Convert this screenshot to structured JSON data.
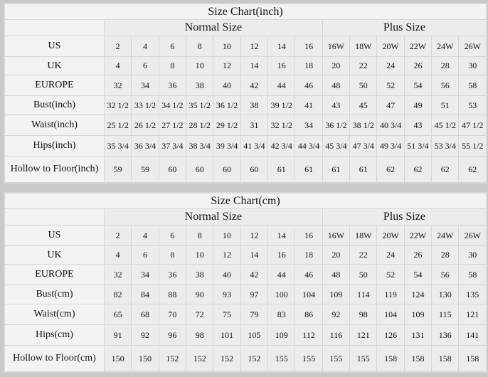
{
  "charts": [
    {
      "title": "Size Chart(inch)",
      "normal_label": "Normal Size",
      "plus_label": "Plus Size",
      "rows": [
        {
          "label": "US",
          "values": [
            "2",
            "4",
            "6",
            "8",
            "10",
            "12",
            "14",
            "16",
            "16W",
            "18W",
            "20W",
            "22W",
            "24W",
            "26W"
          ]
        },
        {
          "label": "UK",
          "values": [
            "4",
            "6",
            "8",
            "10",
            "12",
            "14",
            "16",
            "18",
            "20",
            "22",
            "24",
            "26",
            "28",
            "30"
          ]
        },
        {
          "label": "EUROPE",
          "values": [
            "32",
            "34",
            "36",
            "38",
            "40",
            "42",
            "44",
            "46",
            "48",
            "50",
            "52",
            "54",
            "56",
            "58"
          ]
        },
        {
          "label": "Bust(inch)",
          "values": [
            "32 1/2",
            "33 1/2",
            "34 1/2",
            "35 1/2",
            "36 1/2",
            "38",
            "39 1/2",
            "41",
            "43",
            "45",
            "47",
            "49",
            "51",
            "53"
          ]
        },
        {
          "label": "Waist(inch)",
          "values": [
            "25 1/2",
            "26 1/2",
            "27 1/2",
            "28 1/2",
            "29 1/2",
            "31",
            "32 1/2",
            "34",
            "36 1/2",
            "38 1/2",
            "40 3/4",
            "43",
            "45 1/2",
            "47 1/2"
          ]
        },
        {
          "label": "Hips(inch)",
          "values": [
            "35 3/4",
            "36 3/4",
            "37 3/4",
            "38 3/4",
            "39 3/4",
            "41 3/4",
            "42 3/4",
            "44 3/4",
            "45 3/4",
            "47 3/4",
            "49 3/4",
            "51 3/4",
            "53 3/4",
            "55 1/2"
          ]
        },
        {
          "label": "Hollow to Floor(inch)",
          "values": [
            "59",
            "59",
            "60",
            "60",
            "60",
            "60",
            "61",
            "61",
            "61",
            "61",
            "62",
            "62",
            "62",
            "62"
          ]
        }
      ]
    },
    {
      "title": "Size Chart(cm)",
      "normal_label": "Normal Size",
      "plus_label": "Plus Size",
      "rows": [
        {
          "label": "US",
          "values": [
            "2",
            "4",
            "6",
            "8",
            "10",
            "12",
            "14",
            "16",
            "16W",
            "18W",
            "20W",
            "22W",
            "24W",
            "26W"
          ]
        },
        {
          "label": "UK",
          "values": [
            "4",
            "6",
            "8",
            "10",
            "12",
            "14",
            "16",
            "18",
            "20",
            "22",
            "24",
            "26",
            "28",
            "30"
          ]
        },
        {
          "label": "EUROPE",
          "values": [
            "32",
            "34",
            "36",
            "38",
            "40",
            "42",
            "44",
            "46",
            "48",
            "50",
            "52",
            "54",
            "56",
            "58"
          ]
        },
        {
          "label": "Bust(cm)",
          "values": [
            "82",
            "84",
            "88",
            "90",
            "93",
            "97",
            "100",
            "104",
            "109",
            "114",
            "119",
            "124",
            "130",
            "135"
          ]
        },
        {
          "label": "Waist(cm)",
          "values": [
            "65",
            "68",
            "70",
            "72",
            "75",
            "79",
            "83",
            "86",
            "92",
            "98",
            "104",
            "109",
            "115",
            "121"
          ]
        },
        {
          "label": "Hips(cm)",
          "values": [
            "91",
            "92",
            "96",
            "98",
            "101",
            "105",
            "109",
            "112",
            "116",
            "121",
            "126",
            "131",
            "136",
            "141"
          ]
        },
        {
          "label": "Hollow to Floor(cm)",
          "values": [
            "150",
            "150",
            "152",
            "152",
            "152",
            "152",
            "155",
            "155",
            "155",
            "155",
            "158",
            "158",
            "158",
            "158"
          ]
        }
      ]
    }
  ]
}
